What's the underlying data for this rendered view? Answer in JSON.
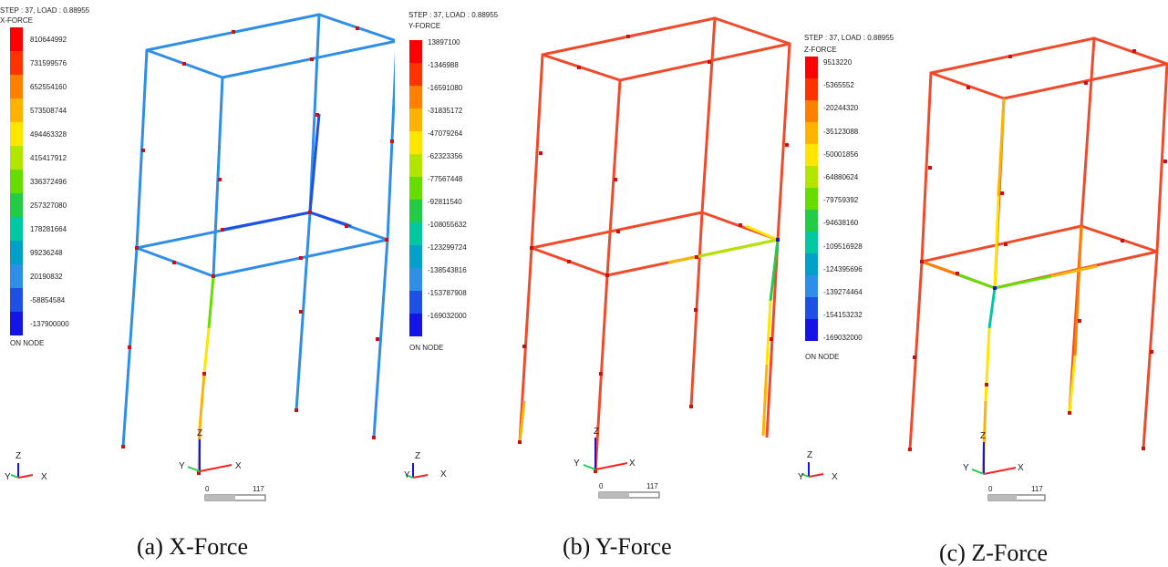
{
  "panels": [
    {
      "id": "a",
      "step_text": "STEP : 37, LOAD : 0.88955",
      "component": "X-FORCE",
      "legend_values": [
        "810644992",
        "731599576",
        "652554160",
        "573508744",
        "494463328",
        "415417912",
        "336372496",
        "257327080",
        "178281664",
        "99236248",
        "20190832",
        "-58854584",
        "-137900000"
      ],
      "footer": "ON NODE",
      "caption": "(a) X-Force",
      "scale": {
        "zero": "0",
        "max": "117"
      },
      "triad_small": {
        "x": "X",
        "y": "Y",
        "z": "Z"
      },
      "triad_large": {
        "x": "X",
        "y": "Y",
        "z": "Z"
      }
    },
    {
      "id": "b",
      "step_text": "STEP : 37, LOAD : 0.88955",
      "component": "Y-FORCE",
      "legend_values": [
        "13897100",
        "-1346988",
        "-16591080",
        "-31835172",
        "-47079264",
        "-62323356",
        "-77567448",
        "-92811540",
        "-108055632",
        "-123299724",
        "-138543816",
        "-153787908",
        "-169032000"
      ],
      "footer": "ON NODE",
      "caption": "(b) Y-Force",
      "scale": {
        "zero": "0",
        "max": "117"
      },
      "triad_small": {
        "x": "X",
        "y": "Y",
        "z": "Z"
      },
      "triad_large": {
        "x": "X",
        "y": "Y",
        "z": "Z"
      }
    },
    {
      "id": "c",
      "step_text": "STEP : 37, LOAD : 0.88955",
      "component": "Z-FORCE",
      "legend_values": [
        "9513220",
        "-5365552",
        "-20244320",
        "-35123088",
        "-50001856",
        "-64880624",
        "-79759392",
        "-94638160",
        "-109516928",
        "-124395696",
        "-139274464",
        "-154153232",
        "-169032000"
      ],
      "footer": "ON NODE",
      "caption": "(c) Z-Force",
      "scale": {
        "zero": "0",
        "max": "117"
      },
      "triad_small": {
        "x": "X",
        "y": "Y",
        "z": "Z"
      },
      "triad_large": {
        "x": "X",
        "y": "Y",
        "z": "Z"
      }
    }
  ],
  "legend_colors": [
    "#ff0000",
    "#ff3300",
    "#ff7f00",
    "#ffb200",
    "#ffe600",
    "#b2e600",
    "#66dd00",
    "#22cc44",
    "#00c8a0",
    "#00a0c8",
    "#2f8ee8",
    "#1e50e6",
    "#1414e6"
  ],
  "member_colors": {
    "panel_a_default": "#2f8ee8",
    "panel_b_default": "#f04a2a",
    "panel_c_default": "#f04a2a",
    "node_marker": "#cc1111"
  }
}
